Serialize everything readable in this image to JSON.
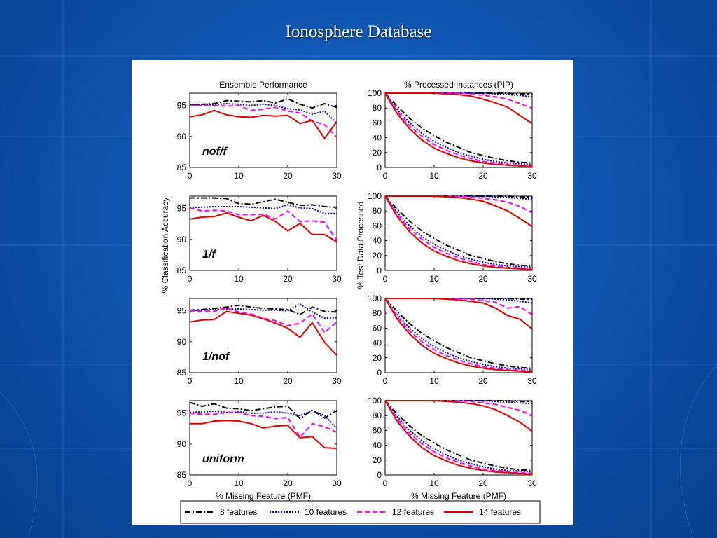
{
  "slide": {
    "title": "Ionosphere Database"
  },
  "colors": {
    "8 features": "#000000",
    "10 features": "#0000c8",
    "12 features": "#ff00ff",
    "14 features": "#e00000"
  },
  "chart_data": [
    {
      "type": "line",
      "panel": "ensemble-nof-f",
      "title": "Ensemble Performance",
      "xlabel": "",
      "ylabel": "",
      "annotation": "nof/f",
      "xlim": [
        0,
        30
      ],
      "ylim": [
        85,
        97
      ],
      "xticks": [
        0,
        10,
        20,
        30
      ],
      "yticks": [
        85,
        90,
        95
      ],
      "x": [
        0,
        2.5,
        5,
        7.5,
        10,
        12.5,
        15,
        17.5,
        20,
        22.5,
        25,
        27.5,
        30
      ],
      "series": [
        {
          "name": "8 features",
          "values": [
            95.1,
            95.2,
            95.3,
            95.8,
            95.7,
            95.6,
            95.8,
            95.4,
            96.1,
            95.2,
            94.6,
            95.3,
            94.7
          ]
        },
        {
          "name": "10 features",
          "values": [
            95.0,
            95.1,
            95.1,
            95.3,
            95.2,
            95.0,
            95.2,
            95.0,
            94.5,
            94.3,
            93.6,
            94.1,
            92.1
          ]
        },
        {
          "name": "12 features",
          "values": [
            95.0,
            95.0,
            95.0,
            94.9,
            95.0,
            94.2,
            94.4,
            94.7,
            94.1,
            93.8,
            92.5,
            91.9,
            89.9
          ]
        },
        {
          "name": "14 features",
          "values": [
            93.2,
            93.5,
            94.2,
            93.5,
            93.2,
            93.1,
            93.4,
            93.3,
            93.4,
            92.1,
            92.6,
            89.7,
            92.4
          ]
        }
      ]
    },
    {
      "type": "line",
      "panel": "pip-nof-f",
      "title": "% Processed Instances (PIP)",
      "xlabel": "",
      "ylabel": "",
      "xlim": [
        0,
        30
      ],
      "ylim": [
        0,
        100
      ],
      "xticks": [
        0,
        10,
        20,
        30
      ],
      "yticks": [
        0,
        20,
        40,
        60,
        80,
        100
      ],
      "x": [
        0,
        2.5,
        5,
        7.5,
        10,
        12.5,
        15,
        17.5,
        20,
        22.5,
        25,
        27.5,
        30
      ],
      "series": [
        {
          "name": "8 features",
          "values": [
            100,
            100,
            100,
            100,
            100,
            100,
            100,
            100,
            100,
            100,
            100,
            99,
            99
          ]
        },
        {
          "name": "10 features",
          "values": [
            100,
            100,
            100,
            100,
            100,
            100,
            100,
            100,
            100,
            99,
            98,
            97,
            95
          ]
        },
        {
          "name": "12 features",
          "values": [
            100,
            100,
            100,
            100,
            100,
            100,
            100,
            99,
            97,
            95,
            92,
            86,
            80
          ]
        },
        {
          "name": "14 features",
          "values": [
            100,
            100,
            100,
            100,
            100,
            99,
            98,
            96,
            92,
            87,
            81,
            70,
            59
          ]
        },
        {
          "name": "8 features",
          "values": [
            100,
            82,
            66,
            53,
            43,
            34,
            27,
            20,
            16,
            12,
            9,
            7,
            6
          ]
        },
        {
          "name": "10 features",
          "values": [
            100,
            78,
            60,
            46,
            35,
            27,
            20,
            15,
            11,
            8,
            6,
            5,
            4
          ]
        },
        {
          "name": "12 features",
          "values": [
            100,
            75,
            56,
            42,
            31,
            23,
            17,
            12,
            8,
            6,
            4,
            3,
            2
          ]
        },
        {
          "name": "14 features",
          "values": [
            100,
            72,
            52,
            37,
            26,
            19,
            13,
            9,
            6,
            4,
            3,
            2,
            1
          ]
        }
      ]
    },
    {
      "type": "line",
      "panel": "ensemble-1-f",
      "title": "",
      "xlabel": "",
      "ylabel": "% Classification Accuracy",
      "annotation": "1/f",
      "xlim": [
        0,
        30
      ],
      "ylim": [
        85,
        97
      ],
      "xticks": [
        0,
        10,
        20,
        30
      ],
      "yticks": [
        85,
        90,
        95
      ],
      "x": [
        0,
        2.5,
        5,
        7.5,
        10,
        12.5,
        15,
        17.5,
        20,
        22.5,
        25,
        27.5,
        30
      ],
      "series": [
        {
          "name": "8 features",
          "values": [
            96.7,
            96.7,
            96.7,
            96.6,
            95.8,
            95.7,
            96.1,
            96.5,
            96.0,
            95.5,
            95.6,
            95.3,
            95.2
          ]
        },
        {
          "name": "10 features",
          "values": [
            95.2,
            95.2,
            95.3,
            95.3,
            95.3,
            95.2,
            95.1,
            95.0,
            95.6,
            95.1,
            95.0,
            94.2,
            94.2
          ]
        },
        {
          "name": "12 features",
          "values": [
            95.1,
            94.6,
            94.7,
            94.6,
            94.0,
            94.0,
            94.1,
            93.3,
            94.6,
            92.9,
            93.0,
            92.8,
            89.9
          ]
        },
        {
          "name": "14 features",
          "values": [
            93.3,
            93.6,
            93.7,
            94.3,
            93.6,
            93.0,
            93.9,
            92.9,
            91.4,
            92.6,
            90.8,
            90.8,
            89.6
          ]
        }
      ]
    },
    {
      "type": "line",
      "panel": "pip-1-f",
      "title": "",
      "xlabel": "",
      "ylabel": "% Test Data Processed",
      "xlim": [
        0,
        30
      ],
      "ylim": [
        0,
        100
      ],
      "xticks": [
        0,
        10,
        20,
        30
      ],
      "yticks": [
        0,
        20,
        40,
        60,
        80,
        100
      ],
      "x": [
        0,
        2.5,
        5,
        7.5,
        10,
        12.5,
        15,
        17.5,
        20,
        22.5,
        25,
        27.5,
        30
      ],
      "series": [
        {
          "name": "8 features",
          "values": [
            100,
            100,
            100,
            100,
            100,
            100,
            100,
            100,
            100,
            100,
            100,
            99,
            99
          ]
        },
        {
          "name": "10 features",
          "values": [
            100,
            100,
            100,
            100,
            100,
            100,
            100,
            100,
            100,
            99,
            98,
            97,
            96
          ]
        },
        {
          "name": "12 features",
          "values": [
            100,
            100,
            100,
            100,
            100,
            100,
            100,
            99,
            97,
            95,
            92,
            86,
            78
          ]
        },
        {
          "name": "14 features",
          "values": [
            100,
            100,
            100,
            100,
            100,
            99,
            98,
            96,
            93,
            87,
            80,
            70,
            59
          ]
        },
        {
          "name": "8 features",
          "values": [
            100,
            82,
            66,
            53,
            43,
            34,
            27,
            20,
            16,
            12,
            9,
            7,
            6
          ]
        },
        {
          "name": "10 features",
          "values": [
            100,
            78,
            60,
            46,
            35,
            27,
            20,
            15,
            11,
            8,
            6,
            5,
            4
          ]
        },
        {
          "name": "12 features",
          "values": [
            100,
            75,
            56,
            42,
            31,
            23,
            17,
            12,
            8,
            6,
            4,
            3,
            2
          ]
        },
        {
          "name": "14 features",
          "values": [
            100,
            72,
            52,
            37,
            26,
            19,
            13,
            9,
            6,
            4,
            3,
            2,
            1
          ]
        }
      ]
    },
    {
      "type": "line",
      "panel": "ensemble-1-nof",
      "title": "",
      "xlabel": "",
      "ylabel": "",
      "annotation": "1/nof",
      "xlim": [
        0,
        30
      ],
      "ylim": [
        85,
        97
      ],
      "xticks": [
        0,
        10,
        20,
        30
      ],
      "yticks": [
        85,
        90,
        95
      ],
      "x": [
        0,
        2.5,
        5,
        7.5,
        10,
        12.5,
        15,
        17.5,
        20,
        22.5,
        25,
        27.5,
        30
      ],
      "series": [
        {
          "name": "8 features",
          "values": [
            95.1,
            95.2,
            95.4,
            95.6,
            95.9,
            95.6,
            95.4,
            95.3,
            95.2,
            94.4,
            95.6,
            94.9,
            94.8
          ]
        },
        {
          "name": "10 features",
          "values": [
            95.0,
            95.1,
            95.2,
            95.3,
            95.3,
            95.2,
            95.1,
            95.1,
            95.0,
            96.1,
            94.8,
            93.8,
            93.9
          ]
        },
        {
          "name": "12 features",
          "values": [
            95.0,
            94.9,
            94.9,
            95.5,
            94.8,
            94.5,
            93.8,
            93.4,
            92.6,
            93.0,
            94.5,
            91.5,
            93.2
          ]
        },
        {
          "name": "14 features",
          "values": [
            93.2,
            93.5,
            93.6,
            94.9,
            94.6,
            94.3,
            93.7,
            93.0,
            92.2,
            90.7,
            93.1,
            89.9,
            87.8
          ]
        }
      ]
    },
    {
      "type": "line",
      "panel": "pip-1-nof",
      "title": "",
      "xlabel": "",
      "ylabel": "",
      "xlim": [
        0,
        30
      ],
      "ylim": [
        0,
        100
      ],
      "xticks": [
        0,
        10,
        20,
        30
      ],
      "yticks": [
        0,
        20,
        40,
        60,
        80,
        100
      ],
      "x": [
        0,
        2.5,
        5,
        7.5,
        10,
        12.5,
        15,
        17.5,
        20,
        22.5,
        25,
        27.5,
        30
      ],
      "series": [
        {
          "name": "8 features",
          "values": [
            100,
            100,
            100,
            100,
            100,
            100,
            100,
            100,
            100,
            100,
            100,
            99,
            99
          ]
        },
        {
          "name": "10 features",
          "values": [
            100,
            100,
            100,
            100,
            100,
            100,
            100,
            100,
            100,
            99,
            98,
            96,
            94
          ]
        },
        {
          "name": "12 features",
          "values": [
            100,
            100,
            100,
            100,
            100,
            100,
            100,
            99,
            97,
            95,
            87,
            89,
            78
          ]
        },
        {
          "name": "14 features",
          "values": [
            100,
            100,
            100,
            100,
            100,
            99,
            98,
            96,
            94,
            87,
            77,
            72,
            59
          ]
        },
        {
          "name": "8 features",
          "values": [
            100,
            82,
            66,
            53,
            43,
            34,
            27,
            20,
            16,
            12,
            9,
            7,
            6
          ]
        },
        {
          "name": "10 features",
          "values": [
            100,
            78,
            60,
            46,
            35,
            27,
            20,
            15,
            11,
            8,
            6,
            5,
            4
          ]
        },
        {
          "name": "12 features",
          "values": [
            100,
            75,
            56,
            42,
            31,
            23,
            17,
            12,
            8,
            6,
            4,
            3,
            2
          ]
        },
        {
          "name": "14 features",
          "values": [
            100,
            72,
            52,
            37,
            26,
            19,
            13,
            9,
            6,
            4,
            3,
            2,
            1
          ]
        }
      ]
    },
    {
      "type": "line",
      "panel": "ensemble-uniform",
      "title": "",
      "xlabel": "% Missing Feature (PMF)",
      "ylabel": "",
      "annotation": "uniform",
      "xlim": [
        0,
        30
      ],
      "ylim": [
        85,
        97
      ],
      "xticks": [
        0,
        10,
        20,
        30
      ],
      "yticks": [
        85,
        90,
        95
      ],
      "x": [
        0,
        2.5,
        5,
        7.5,
        10,
        12.5,
        15,
        17.5,
        20,
        22.5,
        25,
        27.5,
        30
      ],
      "series": [
        {
          "name": "8 features",
          "values": [
            96.7,
            96.1,
            96.5,
            95.8,
            95.7,
            95.4,
            95.7,
            96.0,
            96.1,
            94.1,
            95.5,
            94.2,
            95.4
          ]
        },
        {
          "name": "10 features",
          "values": [
            95.1,
            95.2,
            95.3,
            95.1,
            95.2,
            95.0,
            95.0,
            95.2,
            95.0,
            94.6,
            95.4,
            94.6,
            92.6
          ]
        },
        {
          "name": "12 features",
          "values": [
            95.0,
            94.8,
            94.8,
            95.1,
            95.1,
            94.6,
            94.5,
            94.1,
            94.3,
            91.1,
            93.3,
            92.8,
            91.9
          ]
        },
        {
          "name": "14 features",
          "values": [
            93.3,
            93.3,
            93.7,
            93.8,
            93.7,
            93.3,
            92.6,
            92.9,
            93.0,
            91.0,
            91.2,
            89.4,
            89.3
          ]
        }
      ]
    },
    {
      "type": "line",
      "panel": "pip-uniform",
      "title": "",
      "xlabel": "% Missing Feature (PMF)",
      "ylabel": "",
      "xlim": [
        0,
        30
      ],
      "ylim": [
        0,
        100
      ],
      "xticks": [
        0,
        10,
        20,
        30
      ],
      "yticks": [
        0,
        20,
        40,
        60,
        80,
        100
      ],
      "x": [
        0,
        2.5,
        5,
        7.5,
        10,
        12.5,
        15,
        17.5,
        20,
        22.5,
        25,
        27.5,
        30
      ],
      "series": [
        {
          "name": "8 features",
          "values": [
            100,
            100,
            100,
            100,
            100,
            100,
            100,
            100,
            100,
            100,
            100,
            99,
            99
          ]
        },
        {
          "name": "10 features",
          "values": [
            100,
            100,
            100,
            100,
            100,
            100,
            100,
            100,
            100,
            99,
            98,
            97,
            96
          ]
        },
        {
          "name": "12 features",
          "values": [
            100,
            100,
            100,
            100,
            100,
            100,
            100,
            99,
            97,
            95,
            91,
            87,
            80
          ]
        },
        {
          "name": "14 features",
          "values": [
            100,
            100,
            100,
            100,
            100,
            99,
            98,
            96,
            93,
            88,
            80,
            71,
            59
          ]
        },
        {
          "name": "8 features",
          "values": [
            100,
            82,
            66,
            53,
            43,
            34,
            27,
            20,
            16,
            12,
            9,
            7,
            6
          ]
        },
        {
          "name": "10 features",
          "values": [
            100,
            78,
            60,
            46,
            35,
            27,
            20,
            15,
            11,
            8,
            6,
            5,
            4
          ]
        },
        {
          "name": "12 features",
          "values": [
            100,
            75,
            56,
            42,
            31,
            23,
            17,
            12,
            8,
            6,
            4,
            3,
            2
          ]
        },
        {
          "name": "14 features",
          "values": [
            100,
            72,
            52,
            37,
            26,
            19,
            13,
            9,
            6,
            4,
            3,
            2,
            1
          ]
        }
      ]
    }
  ],
  "legend": {
    "placement": "bottom",
    "entries": [
      "8 features",
      "10 features",
      "12 features",
      "14 features"
    ]
  }
}
